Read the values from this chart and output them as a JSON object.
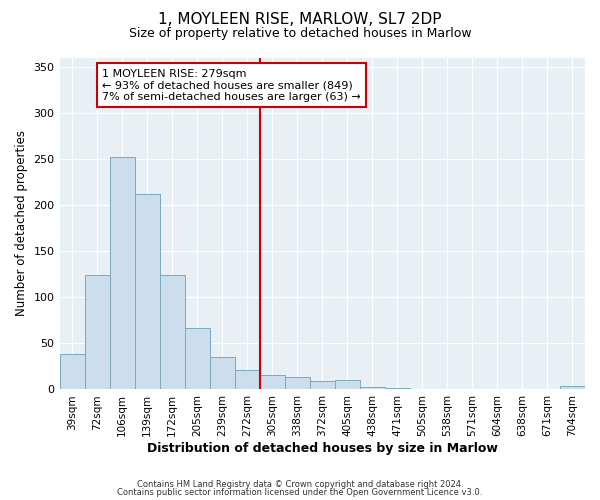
{
  "title": "1, MOYLEEN RISE, MARLOW, SL7 2DP",
  "subtitle": "Size of property relative to detached houses in Marlow",
  "xlabel": "Distribution of detached houses by size in Marlow",
  "ylabel": "Number of detached properties",
  "bar_color": "#ccdded",
  "bar_edge_color": "#7aaabb",
  "bin_labels": [
    "39sqm",
    "72sqm",
    "106sqm",
    "139sqm",
    "172sqm",
    "205sqm",
    "239sqm",
    "272sqm",
    "305sqm",
    "338sqm",
    "372sqm",
    "405sqm",
    "438sqm",
    "471sqm",
    "505sqm",
    "538sqm",
    "571sqm",
    "604sqm",
    "638sqm",
    "671sqm",
    "704sqm"
  ],
  "bin_values": [
    38,
    124,
    252,
    212,
    124,
    67,
    35,
    21,
    16,
    13,
    9,
    10,
    3,
    2,
    0,
    0,
    0,
    0,
    0,
    0,
    4
  ],
  "vline_x_bin": 7.5,
  "vline_color": "#cc0000",
  "annotation_title": "1 MOYLEEN RISE: 279sqm",
  "annotation_line1": "← 93% of detached houses are smaller (849)",
  "annotation_line2": "7% of semi-detached houses are larger (63) →",
  "annotation_box_color": "#cc0000",
  "ylim": [
    0,
    360
  ],
  "yticks": [
    0,
    50,
    100,
    150,
    200,
    250,
    300,
    350
  ],
  "footnote1": "Contains HM Land Registry data © Crown copyright and database right 2024.",
  "footnote2": "Contains public sector information licensed under the Open Government Licence v3.0.",
  "bg_color": "#ffffff",
  "plot_bg_color": "#e8eff5"
}
